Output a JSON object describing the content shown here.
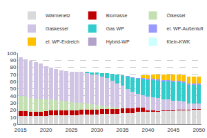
{
  "chart_data": {
    "type": "bar",
    "stacked": true,
    "grid": true,
    "legend": "top",
    "x": [
      2015,
      2016,
      2017,
      2018,
      2019,
      2020,
      2021,
      2022,
      2023,
      2024,
      2025,
      2026,
      2027,
      2028,
      2029,
      2030,
      2031,
      2032,
      2033,
      2034,
      2035,
      2036,
      2037,
      2038,
      2039,
      2040,
      2041,
      2042,
      2043,
      2044,
      2045,
      2046,
      2047,
      2048,
      2049,
      2050
    ],
    "xlim": [
      2014.5,
      2050.5
    ],
    "xticks": [
      2015,
      2020,
      2025,
      2030,
      2035,
      2040,
      2045,
      2050
    ],
    "ylim": [
      0,
      100
    ],
    "yticks": [
      0,
      10,
      20,
      30,
      40,
      50,
      60,
      70,
      80,
      90,
      100
    ],
    "series": [
      {
        "name": "Wärmenetz",
        "color": "#d9d9d9",
        "values": [
          12,
          12,
          12,
          12,
          12,
          12,
          13,
          13,
          13,
          13,
          13,
          13,
          14,
          14,
          14,
          14,
          15,
          15,
          15,
          15,
          16,
          16,
          16,
          17,
          17,
          17,
          17,
          17,
          18,
          18,
          18,
          19,
          19,
          19,
          20,
          20
        ]
      },
      {
        "name": "Biomasse",
        "color": "#c00000",
        "values": [
          6,
          6,
          5,
          5,
          5,
          6,
          6,
          6,
          6,
          6,
          6,
          6,
          6,
          6,
          6,
          6,
          6,
          6,
          6,
          6,
          6,
          6,
          6,
          6,
          6,
          2,
          2,
          1,
          1,
          1,
          1,
          1,
          1,
          1,
          1,
          1
        ]
      },
      {
        "name": "Ölkessel",
        "color": "#c4e0b2",
        "values": [
          22,
          21,
          20,
          19,
          18,
          17,
          16,
          15,
          14,
          13,
          12,
          11,
          10,
          9,
          8,
          7,
          5,
          4,
          3,
          2,
          1,
          0,
          0,
          0,
          0,
          0,
          0,
          0,
          0,
          0,
          0,
          0,
          0,
          0,
          0,
          0
        ]
      },
      {
        "name": "Gaskessel",
        "color": "#d0c4e4",
        "values": [
          54,
          52,
          52,
          51,
          50,
          47,
          45,
          44,
          43,
          43,
          43,
          44,
          44,
          43,
          42,
          43,
          41,
          40,
          37,
          34,
          31,
          28,
          24,
          20,
          18,
          20,
          19,
          19,
          16,
          16,
          14,
          13,
          12,
          9,
          8,
          8
        ]
      },
      {
        "name": "Gas WP",
        "color": "#33cccc",
        "values": [
          0,
          0,
          0,
          0,
          0,
          0,
          0,
          0,
          0,
          0,
          0,
          0,
          0,
          2,
          3,
          3,
          5,
          7,
          10,
          13,
          15,
          17,
          19,
          21,
          22,
          23,
          24,
          24,
          25,
          25,
          26,
          26,
          26,
          26,
          26,
          26
        ]
      },
      {
        "name": "el. WP-Außenluft",
        "color": "#9999ff",
        "values": [
          0,
          0,
          0,
          0,
          0,
          0,
          0,
          0,
          0,
          0,
          0,
          0,
          0,
          0,
          0,
          0,
          0,
          0,
          0,
          0,
          0,
          1,
          1,
          1,
          2,
          2,
          2,
          2,
          2,
          2,
          2,
          2,
          2,
          2,
          2,
          2
        ]
      },
      {
        "name": "el. WP-Erdreich",
        "color": "#ffc000",
        "values": [
          0,
          0,
          0,
          0,
          0,
          0,
          0,
          0,
          0,
          0,
          0,
          0,
          0,
          0,
          0,
          0,
          0,
          0,
          0,
          0,
          0,
          0,
          0,
          0,
          4,
          5,
          6,
          7,
          8,
          8,
          9,
          9,
          9,
          10,
          10,
          10
        ]
      },
      {
        "name": "Hybrid-WP",
        "color": "#b3a2c7",
        "values": [
          0,
          0,
          0,
          0,
          0,
          0,
          0,
          0,
          0,
          0,
          0,
          0,
          0,
          0,
          0,
          0,
          0,
          0,
          0,
          0,
          0,
          0,
          0,
          0,
          0,
          0,
          0,
          0,
          0,
          0,
          0,
          0,
          0,
          0,
          0,
          0
        ]
      },
      {
        "name": "Klein-KWK",
        "color": "#ccffff",
        "values": [
          0,
          0,
          0,
          0,
          0,
          0,
          0,
          0,
          0,
          0,
          0,
          0,
          0,
          0,
          0,
          0,
          0,
          0,
          0,
          0,
          0,
          0,
          0,
          0,
          0,
          0,
          0,
          0,
          0,
          0,
          0,
          0,
          0,
          0,
          0,
          0
        ]
      }
    ]
  }
}
